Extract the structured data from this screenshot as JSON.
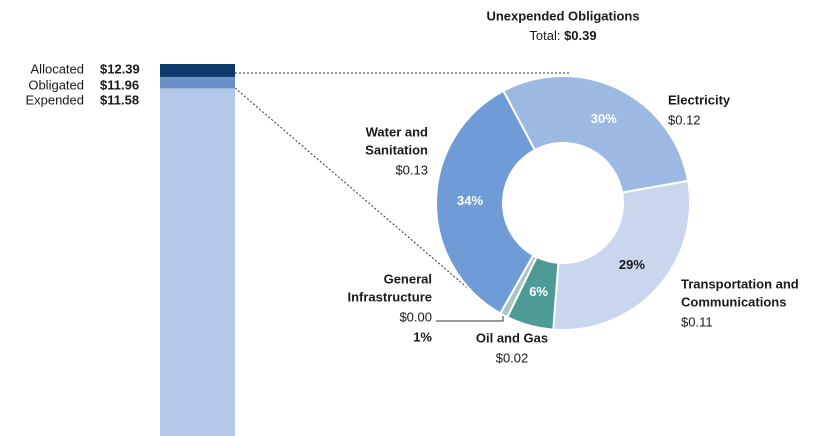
{
  "chart_data": [
    {
      "type": "bar",
      "categories": [
        "Allocated",
        "Obligated",
        "Expended"
      ],
      "values": [
        12.39,
        11.96,
        11.58
      ],
      "value_labels": [
        "$12.39",
        "$11.96",
        "$11.58"
      ],
      "colors": [
        "#0d3a6b",
        "#6a8fc6",
        "#b4c9ea"
      ]
    },
    {
      "type": "donut",
      "title": "Unexpended Obligations",
      "total_label": "Total:",
      "total": {
        "value": 0.39,
        "label": "$0.39"
      },
      "categories": [
        [
          "Electricity"
        ],
        [
          "Transportation and",
          "Communications"
        ],
        [
          "Oil and Gas"
        ],
        [
          "General",
          "Infrastructure"
        ],
        [
          "Water and",
          "Sanitation"
        ]
      ],
      "values": [
        30,
        29,
        6,
        1,
        34
      ],
      "value_labels": [
        "30%",
        "29%",
        "6%",
        "1%",
        "34%"
      ],
      "amounts": [
        {
          "value": 0.12,
          "label": "$0.12"
        },
        {
          "value": 0.11,
          "label": "$0.11"
        },
        {
          "value": 0.02,
          "label": "$0.02"
        },
        {
          "value": 0.0,
          "label": "$0.00"
        },
        {
          "value": 0.13,
          "label": "$0.13"
        }
      ],
      "colors": [
        "#9cb9e3",
        "#c9d6ee",
        "#4e9a96",
        "#a9c7c4",
        "#6f9bd6"
      ]
    }
  ]
}
